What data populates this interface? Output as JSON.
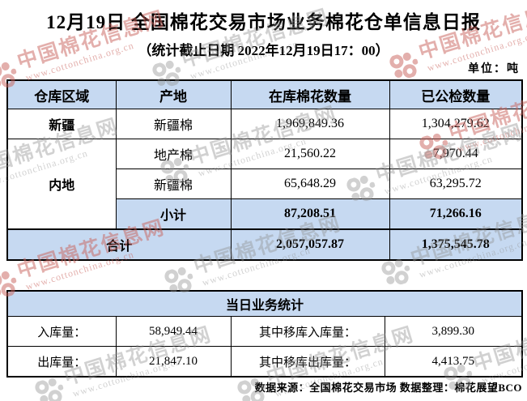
{
  "title": "12月19日 全国棉花交易市场业务棉花仓单信息日报",
  "subtitle": "（统计截止日期 2022年12月19日17：00）",
  "unit_label": "单位：吨",
  "colors": {
    "header_bg": "#c6d9f1",
    "border": "#000000",
    "watermark_red": "#c9625c",
    "watermark_gray": "#8f8f8f"
  },
  "watermark": {
    "brand": "中国棉花信息网",
    "url": "www.cottonchina.org.cn",
    "logo": "cotton-logo"
  },
  "inventory_table": {
    "headers": [
      "仓库区域",
      "产地",
      "在库棉花数量",
      "已公检数量"
    ],
    "rows": [
      {
        "region": "新疆",
        "origin": "新疆棉",
        "in_stock": "1,969,849.36",
        "inspected": "1,304,279.62"
      },
      {
        "region": "内地",
        "origin": "地产棉",
        "in_stock": "21,560.22",
        "inspected": "7,970.44"
      },
      {
        "origin": "新疆棉",
        "in_stock": "65,648.29",
        "inspected": "63,295.72"
      },
      {
        "origin": "小计",
        "in_stock": "87,208.51",
        "inspected": "71,266.16"
      },
      {
        "label": "合计",
        "in_stock": "2,057,057.87",
        "inspected": "1,375,545.78"
      }
    ]
  },
  "daily_table": {
    "title": "当日业务统计",
    "rows": [
      {
        "label": "入库量：",
        "value": "58,949.44",
        "label2": "其中移库入库量：",
        "value2": "3,899.30"
      },
      {
        "label": "出库量：",
        "value": "21,847.10",
        "label2": "其中移库出库量：",
        "value2": "4,413.75"
      }
    ]
  },
  "footer": "数据来源：全国棉花交易市场 数据整理：棉花展望BCO"
}
